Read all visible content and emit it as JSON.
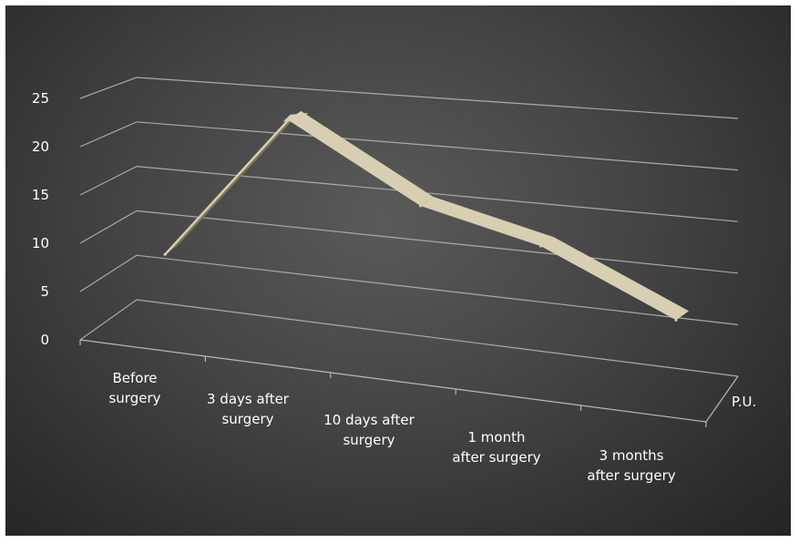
{
  "chart_data": {
    "type": "line",
    "subtype": "3d-line",
    "title": "",
    "xlabel": "",
    "ylabel": "",
    "categories": [
      [
        "Before",
        "surgery"
      ],
      [
        "3 days after",
        "surgery"
      ],
      [
        "10 days after",
        "surgery"
      ],
      [
        "1 month",
        "after surgery"
      ],
      [
        "3 months",
        "after surgery"
      ]
    ],
    "series": [
      {
        "name": "P.U.",
        "values": [
          8,
          24,
          16,
          13,
          7
        ]
      }
    ],
    "ylim": [
      0,
      25
    ],
    "yticks": [
      0,
      5,
      10,
      15,
      20,
      25
    ],
    "grid": true,
    "legend": "none",
    "series_axis_label_position": "right",
    "colors": {
      "background_center": "#5a5a5a",
      "background_edge": "#242424",
      "ribbon_top": "#d8cfb2",
      "ribbon_side": "#7d7556",
      "grid": "#a9a9a9",
      "text": "#ffffff"
    }
  }
}
